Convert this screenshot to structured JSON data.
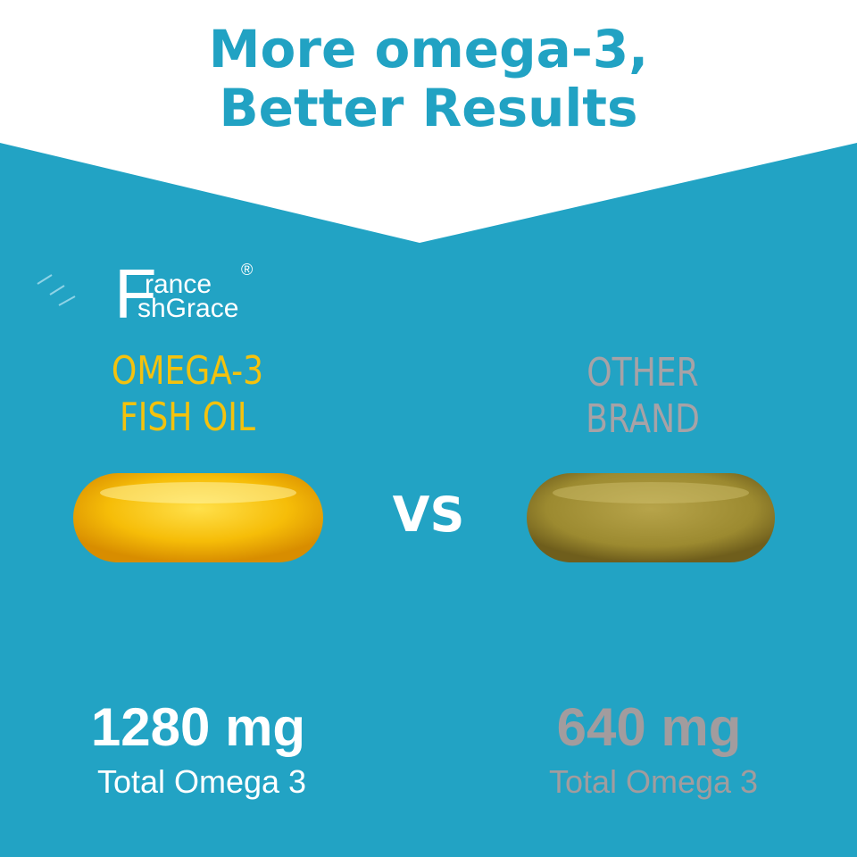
{
  "headline": {
    "line1": "More omega-3,",
    "line2": "Better Results"
  },
  "brand": {
    "initial": "F",
    "line1": "rance",
    "line2": "shGrace",
    "registered": "®"
  },
  "product": {
    "line1": "OMEGA-3",
    "line2": "FISH OIL",
    "amount": "1280 mg",
    "label": "Total Omega 3"
  },
  "vs": "VS",
  "competitor": {
    "line1": "OTHER",
    "line2": "BRAND",
    "amount": "640 mg",
    "label": "Total Omega 3"
  },
  "colors": {
    "background": "#22a3c4",
    "accent_yellow": "#f4c20d",
    "muted_gray": "#a7a2a6"
  }
}
